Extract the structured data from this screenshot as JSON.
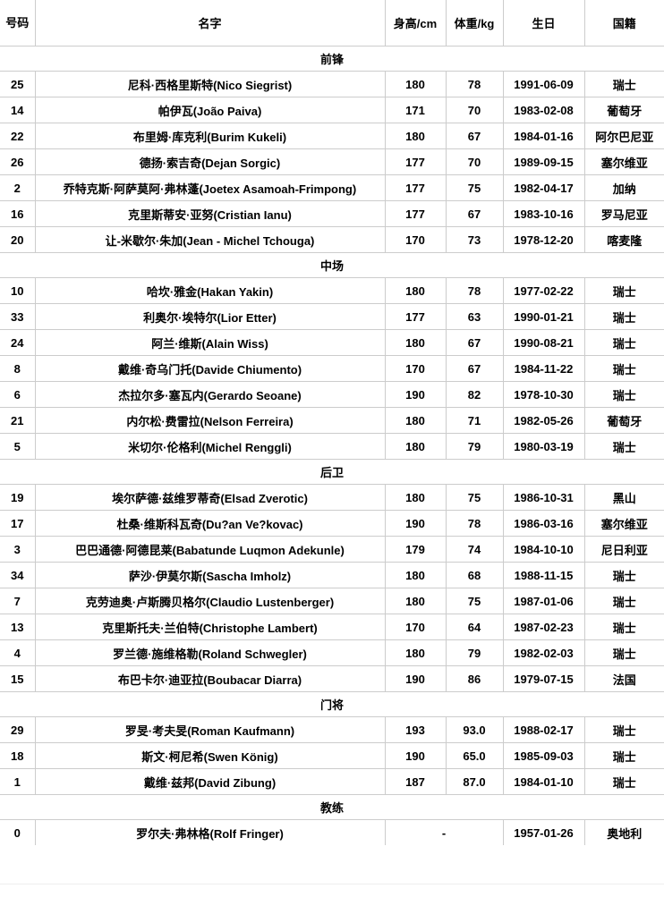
{
  "page": {
    "background": "#ffffff",
    "border_color": "#cccccc",
    "text_color": "#000000"
  },
  "table": {
    "columns": [
      {
        "key": "number",
        "label": "号码"
      },
      {
        "key": "name",
        "label": "名字"
      },
      {
        "key": "height",
        "label": "身高/cm"
      },
      {
        "key": "weight",
        "label": "体重/kg"
      },
      {
        "key": "birthday",
        "label": "生日"
      },
      {
        "key": "nationality",
        "label": "国籍"
      }
    ],
    "sections": [
      {
        "title": "前锋",
        "players": [
          {
            "number": "25",
            "name": "尼科·西格里斯特(Nico Siegrist)",
            "height": "180",
            "weight": "78",
            "birthday": "1991-06-09",
            "nationality": "瑞士"
          },
          {
            "number": "14",
            "name": "帕伊瓦(João Paiva)",
            "height": "171",
            "weight": "70",
            "birthday": "1983-02-08",
            "nationality": "葡萄牙"
          },
          {
            "number": "22",
            "name": "布里姆·库克利(Burim Kukeli)",
            "height": "180",
            "weight": "67",
            "birthday": "1984-01-16",
            "nationality": "阿尔巴尼亚"
          },
          {
            "number": "26",
            "name": "德扬·索吉奇(Dejan Sorgic)",
            "height": "177",
            "weight": "70",
            "birthday": "1989-09-15",
            "nationality": "塞尔维亚"
          },
          {
            "number": "2",
            "name": "乔特克斯·阿萨莫阿·弗林蓬(Joetex Asamoah-Frimpong)",
            "height": "177",
            "weight": "75",
            "birthday": "1982-04-17",
            "nationality": "加纳"
          },
          {
            "number": "16",
            "name": "克里斯蒂安·亚努(Cristian Ianu)",
            "height": "177",
            "weight": "67",
            "birthday": "1983-10-16",
            "nationality": "罗马尼亚"
          },
          {
            "number": "20",
            "name": "让-米歇尔·朱加(Jean - Michel Tchouga)",
            "height": "170",
            "weight": "73",
            "birthday": "1978-12-20",
            "nationality": "喀麦隆"
          }
        ]
      },
      {
        "title": "中场",
        "players": [
          {
            "number": "10",
            "name": "哈坎·雅金(Hakan Yakin)",
            "height": "180",
            "weight": "78",
            "birthday": "1977-02-22",
            "nationality": "瑞士"
          },
          {
            "number": "33",
            "name": "利奥尔·埃特尔(Lior Etter)",
            "height": "177",
            "weight": "63",
            "birthday": "1990-01-21",
            "nationality": "瑞士"
          },
          {
            "number": "24",
            "name": "阿兰·维斯(Alain Wiss)",
            "height": "180",
            "weight": "67",
            "birthday": "1990-08-21",
            "nationality": "瑞士"
          },
          {
            "number": "8",
            "name": "戴维·奇乌门托(Davide Chiumento)",
            "height": "170",
            "weight": "67",
            "birthday": "1984-11-22",
            "nationality": "瑞士"
          },
          {
            "number": "6",
            "name": "杰拉尔多·塞瓦内(Gerardo Seoane)",
            "height": "190",
            "weight": "82",
            "birthday": "1978-10-30",
            "nationality": "瑞士"
          },
          {
            "number": "21",
            "name": "内尔松·费雷拉(Nelson Ferreira)",
            "height": "180",
            "weight": "71",
            "birthday": "1982-05-26",
            "nationality": "葡萄牙"
          },
          {
            "number": "5",
            "name": "米切尔·伦格利(Michel Renggli)",
            "height": "180",
            "weight": "79",
            "birthday": "1980-03-19",
            "nationality": "瑞士"
          }
        ]
      },
      {
        "title": "后卫",
        "players": [
          {
            "number": "19",
            "name": "埃尔萨德·兹维罗蒂奇(Elsad Zverotic)",
            "height": "180",
            "weight": "75",
            "birthday": "1986-10-31",
            "nationality": "黑山"
          },
          {
            "number": "17",
            "name": "杜桑·维斯科瓦奇(Du?an Ve?kovac)",
            "height": "190",
            "weight": "78",
            "birthday": "1986-03-16",
            "nationality": "塞尔维亚"
          },
          {
            "number": "3",
            "name": "巴巴通德·阿德昆莱(Babatunde Luqmon Adekunle)",
            "height": "179",
            "weight": "74",
            "birthday": "1984-10-10",
            "nationality": "尼日利亚"
          },
          {
            "number": "34",
            "name": "萨沙·伊莫尔斯(Sascha Imholz)",
            "height": "180",
            "weight": "68",
            "birthday": "1988-11-15",
            "nationality": "瑞士"
          },
          {
            "number": "7",
            "name": "克劳迪奥·卢斯腾贝格尔(Claudio Lustenberger)",
            "height": "180",
            "weight": "75",
            "birthday": "1987-01-06",
            "nationality": "瑞士"
          },
          {
            "number": "13",
            "name": "克里斯托夫·兰伯特(Christophe Lambert)",
            "height": "170",
            "weight": "64",
            "birthday": "1987-02-23",
            "nationality": "瑞士"
          },
          {
            "number": "4",
            "name": "罗兰德·施维格勒(Roland Schwegler)",
            "height": "180",
            "weight": "79",
            "birthday": "1982-02-03",
            "nationality": "瑞士"
          },
          {
            "number": "15",
            "name": "布巴卡尔·迪亚拉(Boubacar Diarra)",
            "height": "190",
            "weight": "86",
            "birthday": "1979-07-15",
            "nationality": "法国"
          }
        ]
      },
      {
        "title": "门将",
        "players": [
          {
            "number": "29",
            "name": "罗旻·考夫旻(Roman Kaufmann)",
            "height": "193",
            "weight": "93.0",
            "birthday": "1988-02-17",
            "nationality": "瑞士"
          },
          {
            "number": "18",
            "name": "斯文·柯尼希(Swen König)",
            "height": "190",
            "weight": "65.0",
            "birthday": "1985-09-03",
            "nationality": "瑞士"
          },
          {
            "number": "1",
            "name": "戴维·兹邦(David Zibung)",
            "height": "187",
            "weight": "87.0",
            "birthday": "1984-01-10",
            "nationality": "瑞士"
          }
        ]
      },
      {
        "title": "教练",
        "players": [
          {
            "number": "0",
            "name": "罗尔夫·弗林格(Rolf Fringer)",
            "height_weight": "-",
            "birthday": "1957-01-26",
            "nationality": "奥地利"
          }
        ]
      }
    ]
  }
}
